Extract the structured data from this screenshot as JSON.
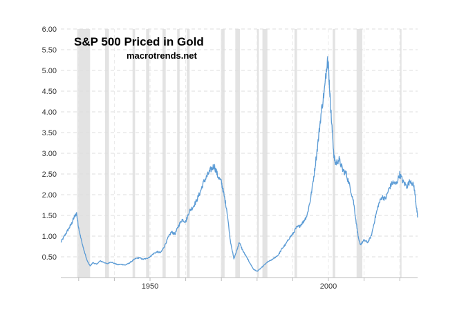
{
  "chart_data": {
    "type": "line",
    "title": "S&P 500 Priced in Gold",
    "subtitle": "macrotrends.net",
    "xlabel": "",
    "ylabel": "",
    "xlim": [
      1925,
      2025
    ],
    "ylim": [
      0,
      6
    ],
    "grid": true,
    "y_ticks": [
      "6.00",
      "5.50",
      "5.00",
      "4.50",
      "4.00",
      "3.50",
      "3.00",
      "2.50",
      "2.00",
      "1.50",
      "1.00",
      "0.50"
    ],
    "x_ticks": [
      {
        "year": 1950,
        "label": "1950"
      },
      {
        "year": 2000,
        "label": "2000"
      }
    ],
    "recessions": [
      [
        1929.6,
        1933.2
      ],
      [
        1937.4,
        1938.5
      ],
      [
        1945.1,
        1945.8
      ],
      [
        1948.9,
        1949.8
      ],
      [
        1953.5,
        1954.4
      ],
      [
        1957.6,
        1958.3
      ],
      [
        1960.3,
        1961.1
      ],
      [
        1969.9,
        1970.9
      ],
      [
        1973.9,
        1975.2
      ],
      [
        1980.0,
        1980.5
      ],
      [
        1981.5,
        1982.9
      ],
      [
        1990.5,
        1991.2
      ],
      [
        2001.2,
        2001.9
      ],
      [
        2007.9,
        2009.5
      ],
      [
        2020.1,
        2020.4
      ]
    ],
    "series": [
      {
        "color": "#5b9bd5",
        "x": [
          1925,
          1926,
          1927,
          1928,
          1928.7,
          1929.4,
          1929.9,
          1930.6,
          1931.5,
          1932.4,
          1933.2,
          1934,
          1935,
          1936,
          1937,
          1938,
          1939,
          1940,
          1941,
          1942,
          1943,
          1944,
          1945,
          1946,
          1947,
          1948,
          1949,
          1950,
          1951,
          1952,
          1953,
          1954,
          1955,
          1956,
          1957,
          1958,
          1959,
          1960,
          1961,
          1962,
          1963,
          1964,
          1965,
          1966,
          1967,
          1968,
          1969,
          1970,
          1970.6,
          1971.5,
          1972.5,
          1973.5,
          1974.5,
          1975,
          1976,
          1977,
          1978,
          1979,
          1980,
          1981,
          1982,
          1983,
          1984,
          1985,
          1986,
          1987,
          1988,
          1989,
          1990,
          1991,
          1992,
          1993,
          1994,
          1995,
          1996,
          1997,
          1998,
          1999,
          1999.7,
          2000,
          2000.5,
          2001,
          2001.6,
          2002,
          2003,
          2004,
          2005,
          2006,
          2007,
          2008,
          2008.5,
          2009,
          2010,
          2011,
          2012,
          2013,
          2014,
          2015,
          2016,
          2017,
          2018,
          2019,
          2020,
          2021,
          2022,
          2023,
          2024,
          2024.6,
          2025
        ],
        "y": [
          0.85,
          1.0,
          1.15,
          1.3,
          1.45,
          1.55,
          1.25,
          0.95,
          0.65,
          0.4,
          0.28,
          0.36,
          0.32,
          0.4,
          0.37,
          0.33,
          0.38,
          0.34,
          0.31,
          0.32,
          0.3,
          0.34,
          0.4,
          0.46,
          0.48,
          0.44,
          0.46,
          0.5,
          0.58,
          0.62,
          0.6,
          0.75,
          0.95,
          1.1,
          1.05,
          1.25,
          1.4,
          1.35,
          1.6,
          1.7,
          1.85,
          2.05,
          2.3,
          2.45,
          2.6,
          2.7,
          2.45,
          2.3,
          2.05,
          1.65,
          0.9,
          0.45,
          0.7,
          0.85,
          0.65,
          0.5,
          0.35,
          0.2,
          0.15,
          0.22,
          0.3,
          0.38,
          0.42,
          0.48,
          0.55,
          0.7,
          0.8,
          0.95,
          1.05,
          1.2,
          1.25,
          1.35,
          1.5,
          1.9,
          2.5,
          3.2,
          4.0,
          4.6,
          5.3,
          5.1,
          4.3,
          3.6,
          2.9,
          2.75,
          2.85,
          2.6,
          2.5,
          2.2,
          1.85,
          1.2,
          0.9,
          0.8,
          0.9,
          0.85,
          1.0,
          1.4,
          1.75,
          1.95,
          1.9,
          2.15,
          2.3,
          2.25,
          2.5,
          2.3,
          2.2,
          2.35,
          2.2,
          1.75,
          1.45
        ]
      }
    ]
  }
}
